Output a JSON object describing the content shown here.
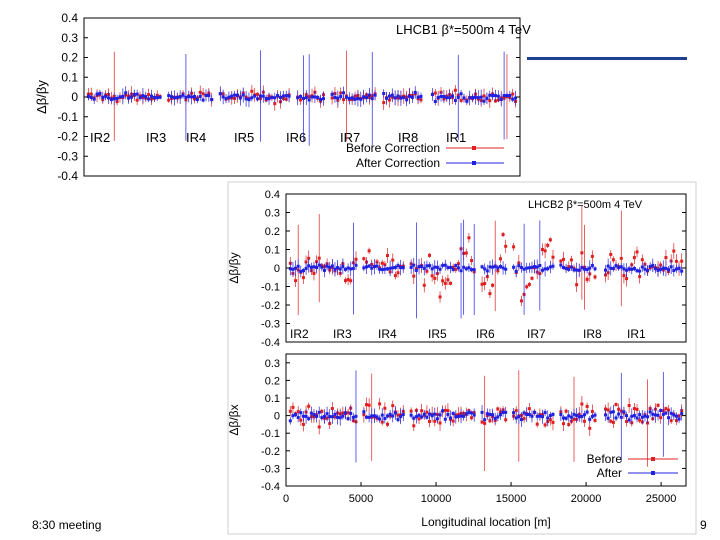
{
  "footer": {
    "meeting": "8:30 meeting",
    "page": "9"
  },
  "chart_data": [
    {
      "type": "scatter",
      "title": "LHCB1 β*=500m 4 TeV",
      "ylabel": "Δβ/βy",
      "ylim": [
        -0.4,
        0.4
      ],
      "yticks": [
        "0.4",
        "0.3",
        "0.2",
        "0.1",
        "0",
        "-0.1",
        "-0.2",
        "-0.3",
        "-0.4"
      ],
      "ir_labels": [
        "IR2",
        "IR3",
        "IR4",
        "IR5",
        "IR6",
        "IR7",
        "IR8",
        "IR1"
      ],
      "legend_position": "bottom-right",
      "series": [
        {
          "name": "Before Correction",
          "color": "#e02020",
          "rms": 0.03
        },
        {
          "name": "After Correction",
          "color": "#2020e0",
          "rms": 0.018
        }
      ]
    },
    {
      "type": "scatter",
      "title": "LHCB2 β*=500m 4 TeV",
      "ylabel": "Δβ/βy",
      "ylim": [
        -0.4,
        0.4
      ],
      "yticks": [
        "0.4",
        "0.3",
        "0.2",
        "0.1",
        "0",
        "-0.1",
        "-0.2",
        "-0.3",
        "-0.4"
      ],
      "ir_labels": [
        "IR2",
        "IR3",
        "IR4",
        "IR5",
        "IR6",
        "IR7",
        "IR8",
        "IR1"
      ],
      "series": [
        {
          "name": "Before",
          "color": "#e02020",
          "rms": 0.09
        },
        {
          "name": "After",
          "color": "#2020e0",
          "rms": 0.02
        }
      ]
    },
    {
      "type": "scatter",
      "ylabel": "Δβ/βx",
      "xlabel": "Longitudinal location [m]",
      "xlim": [
        0,
        26659
      ],
      "xticks": [
        "0",
        "5000",
        "10000",
        "15000",
        "20000",
        "25000"
      ],
      "ylim": [
        -0.4,
        0.35
      ],
      "yticks": [
        "0.3",
        "0.2",
        "0.1",
        "0",
        "-0.1",
        "-0.2",
        "-0.3",
        "-0.4"
      ],
      "legend_position": "bottom-right",
      "series": [
        {
          "name": "Before",
          "color": "#e02020",
          "rms": 0.06
        },
        {
          "name": "After",
          "color": "#2020e0",
          "rms": 0.025
        }
      ]
    }
  ]
}
